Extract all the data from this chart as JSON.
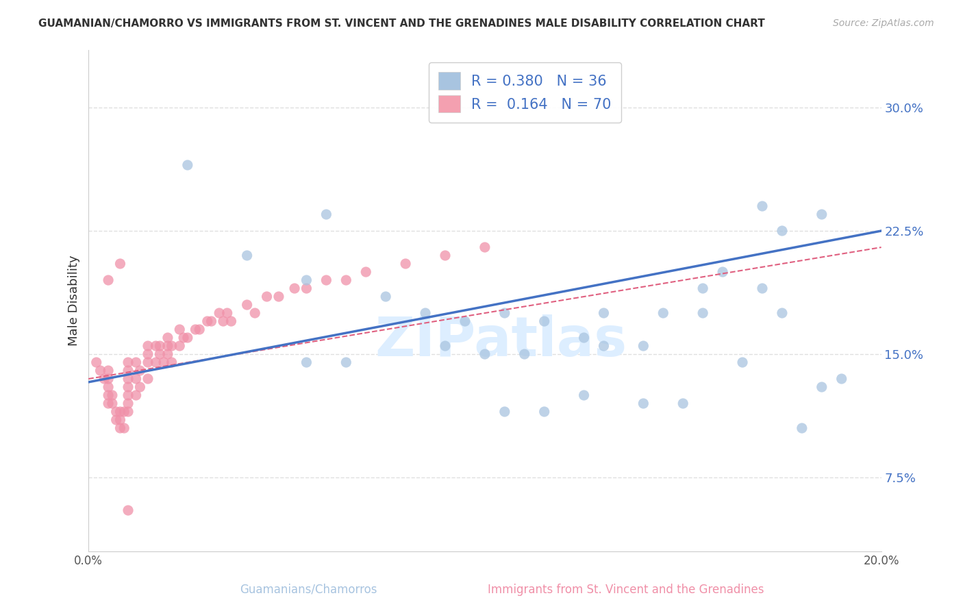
{
  "title": "GUAMANIAN/CHAMORRO VS IMMIGRANTS FROM ST. VINCENT AND THE GRENADINES MALE DISABILITY CORRELATION CHART",
  "source": "Source: ZipAtlas.com",
  "ylabel": "Male Disability",
  "x_min": 0.0,
  "x_max": 0.2,
  "y_min": 0.03,
  "y_max": 0.335,
  "x_ticks": [
    0.0,
    0.05,
    0.1,
    0.15,
    0.2
  ],
  "x_tick_labels": [
    "0.0%",
    "",
    "",
    "",
    "20.0%"
  ],
  "y_ticks": [
    0.075,
    0.15,
    0.225,
    0.3
  ],
  "y_tick_labels": [
    "7.5%",
    "15.0%",
    "22.5%",
    "30.0%"
  ],
  "legend_entries": [
    {
      "label": "R = 0.380   N = 36",
      "color": "#a8c4e0"
    },
    {
      "label": "R =  0.164   N = 70",
      "color": "#f4a0b0"
    }
  ],
  "blue_scatter_x": [
    0.025,
    0.04,
    0.06,
    0.055,
    0.075,
    0.085,
    0.095,
    0.105,
    0.115,
    0.13,
    0.145,
    0.155,
    0.17,
    0.175,
    0.185,
    0.19,
    0.09,
    0.1,
    0.11,
    0.125,
    0.13,
    0.14,
    0.155,
    0.16,
    0.175,
    0.105,
    0.115,
    0.125,
    0.14,
    0.15,
    0.165,
    0.18,
    0.055,
    0.065,
    0.17,
    0.185
  ],
  "blue_scatter_y": [
    0.265,
    0.21,
    0.235,
    0.195,
    0.185,
    0.175,
    0.17,
    0.175,
    0.17,
    0.175,
    0.175,
    0.19,
    0.19,
    0.175,
    0.13,
    0.135,
    0.155,
    0.15,
    0.15,
    0.16,
    0.155,
    0.155,
    0.175,
    0.2,
    0.225,
    0.115,
    0.115,
    0.125,
    0.12,
    0.12,
    0.145,
    0.105,
    0.145,
    0.145,
    0.24,
    0.235
  ],
  "pink_scatter_x": [
    0.002,
    0.003,
    0.004,
    0.005,
    0.005,
    0.005,
    0.005,
    0.005,
    0.006,
    0.006,
    0.007,
    0.007,
    0.008,
    0.008,
    0.008,
    0.009,
    0.009,
    0.01,
    0.01,
    0.01,
    0.01,
    0.01,
    0.01,
    0.01,
    0.012,
    0.012,
    0.012,
    0.013,
    0.013,
    0.015,
    0.015,
    0.015,
    0.015,
    0.017,
    0.017,
    0.018,
    0.018,
    0.019,
    0.02,
    0.02,
    0.02,
    0.021,
    0.021,
    0.023,
    0.023,
    0.024,
    0.025,
    0.027,
    0.028,
    0.03,
    0.031,
    0.033,
    0.034,
    0.035,
    0.036,
    0.04,
    0.042,
    0.045,
    0.048,
    0.052,
    0.055,
    0.06,
    0.065,
    0.07,
    0.08,
    0.09,
    0.1,
    0.005,
    0.008,
    0.01
  ],
  "pink_scatter_y": [
    0.145,
    0.14,
    0.135,
    0.14,
    0.135,
    0.13,
    0.125,
    0.12,
    0.125,
    0.12,
    0.115,
    0.11,
    0.115,
    0.11,
    0.105,
    0.115,
    0.105,
    0.145,
    0.14,
    0.135,
    0.13,
    0.125,
    0.12,
    0.115,
    0.145,
    0.135,
    0.125,
    0.14,
    0.13,
    0.155,
    0.15,
    0.145,
    0.135,
    0.155,
    0.145,
    0.155,
    0.15,
    0.145,
    0.16,
    0.155,
    0.15,
    0.155,
    0.145,
    0.165,
    0.155,
    0.16,
    0.16,
    0.165,
    0.165,
    0.17,
    0.17,
    0.175,
    0.17,
    0.175,
    0.17,
    0.18,
    0.175,
    0.185,
    0.185,
    0.19,
    0.19,
    0.195,
    0.195,
    0.2,
    0.205,
    0.21,
    0.215,
    0.195,
    0.205,
    0.055
  ],
  "blue_line_x": [
    0.0,
    0.2
  ],
  "blue_line_y": [
    0.133,
    0.225
  ],
  "pink_dashed_line_x": [
    0.0,
    0.2
  ],
  "pink_dashed_line_y": [
    0.135,
    0.215
  ],
  "blue_line_color": "#4472c4",
  "pink_dashed_color": "#e06080",
  "blue_dot_color": "#a8c4e0",
  "pink_dot_color": "#f090a8",
  "dot_size": 120,
  "dot_alpha": 0.75,
  "watermark": "ZIPatlas",
  "watermark_color": "#ddeeff",
  "grid_color": "#e0e0e0",
  "bottom_labels": [
    "Guamanians/Chamorros",
    "Immigrants from St. Vincent and the Grenadines"
  ],
  "bottom_label_colors": [
    "#a8c4e0",
    "#f090a8"
  ],
  "background_color": "#ffffff"
}
